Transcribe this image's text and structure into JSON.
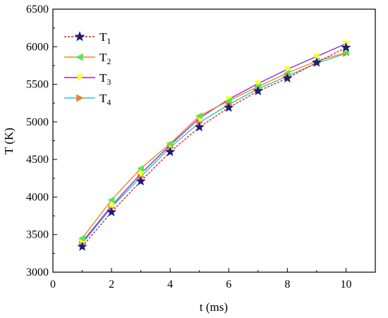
{
  "chart_data": {
    "type": "line",
    "xlabel": "t (ms)",
    "ylabel": "T (K)",
    "xlim": [
      0,
      11
    ],
    "ylim": [
      3000,
      6500
    ],
    "xticks": [
      0,
      2,
      4,
      6,
      8,
      10
    ],
    "yticks": [
      3000,
      3500,
      4000,
      4500,
      5000,
      5500,
      6000,
      6500
    ],
    "xtick_labels": [
      "0",
      "2",
      "4",
      "6",
      "8",
      "10"
    ],
    "ytick_labels": [
      "3000",
      "3500",
      "4000",
      "4500",
      "5000",
      "5500",
      "6000",
      "6500"
    ],
    "grid": false,
    "legend_position": "top-left",
    "x": [
      1,
      2,
      3,
      4,
      5,
      6,
      7,
      8,
      9,
      10
    ],
    "series": [
      {
        "name": "T",
        "subscript": "1",
        "values": [
          3340,
          3800,
          4210,
          4600,
          4930,
          5190,
          5410,
          5580,
          5790,
          5990
        ],
        "line_color": "#e0201e",
        "line_style": "dashed",
        "marker": "star",
        "marker_color": "#1b1b8f"
      },
      {
        "name": "T",
        "subscript": "2",
        "values": [
          3450,
          3960,
          4380,
          4710,
          5080,
          5280,
          5470,
          5650,
          5810,
          5920
        ],
        "line_color": "#f5861f",
        "line_style": "solid",
        "marker": "triangle-left",
        "marker_color": "#55e655"
      },
      {
        "name": "T",
        "subscript": "3",
        "values": [
          3400,
          3880,
          4310,
          4690,
          5050,
          5300,
          5510,
          5700,
          5870,
          6040
        ],
        "line_color": "#8a2be2",
        "line_style": "solid",
        "marker": "triangle-down",
        "marker_color": "#ffff33"
      },
      {
        "name": "T",
        "subscript": "4",
        "values": [
          3380,
          3860,
          4270,
          4660,
          4990,
          5230,
          5440,
          5610,
          5780,
          5910
        ],
        "line_color": "#2ec4c4",
        "line_style": "solid",
        "marker": "triangle-right",
        "marker_color": "#f57c33"
      }
    ]
  }
}
